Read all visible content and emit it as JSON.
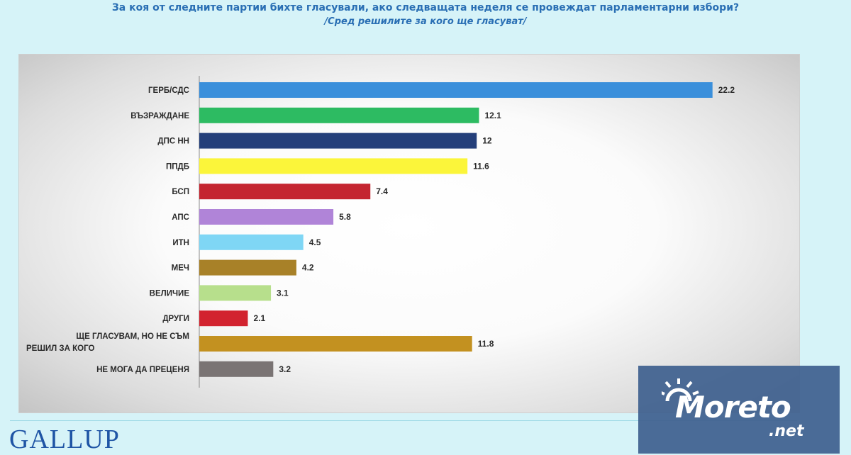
{
  "header": {
    "title": "За коя от следните партии бихте  гласували,  ако следващата неделя се провеждат парламентарни избори?",
    "subtitle": "/Сред решилите за кого ще гласуват/"
  },
  "chart_data": {
    "type": "bar",
    "orientation": "horizontal",
    "categories": [
      "ГЕРБ/СДС",
      "ВЪЗРАЖДАНЕ",
      "ДПС НН",
      "ППДБ",
      "БСП",
      "АПС",
      "ИТН",
      "МЕЧ",
      "ВЕЛИЧИЕ",
      "ДРУГИ",
      "ЩЕ ГЛАСУВАМ, НО НЕ СЪМ РЕШИЛ ЗА КОГО",
      "НЕ МОГА ДА ПРЕЦЕНЯ"
    ],
    "values": [
      22.2,
      12.1,
      12,
      11.6,
      7.4,
      5.8,
      4.5,
      4.2,
      3.1,
      2.1,
      11.8,
      3.2
    ],
    "value_labels": [
      "22.2",
      "12.1",
      "12",
      "11.6",
      "7.4",
      "5.8",
      "4.5",
      "4.2",
      "3.1",
      "2.1",
      "11.8",
      "3.2"
    ],
    "colors": [
      "#3a8fdb",
      "#2dbb62",
      "#243f7a",
      "#fbf53a",
      "#c42530",
      "#b084d8",
      "#7fd6f5",
      "#a88128",
      "#b7df8c",
      "#d2232f",
      "#c39120",
      "#7a7474"
    ],
    "xlabel": "",
    "ylabel": "",
    "grid": false,
    "legend": "none"
  },
  "footer": {
    "logo_text": "GALLUP"
  },
  "watermark": {
    "brand": "Moreto",
    "suffix": ".net"
  }
}
